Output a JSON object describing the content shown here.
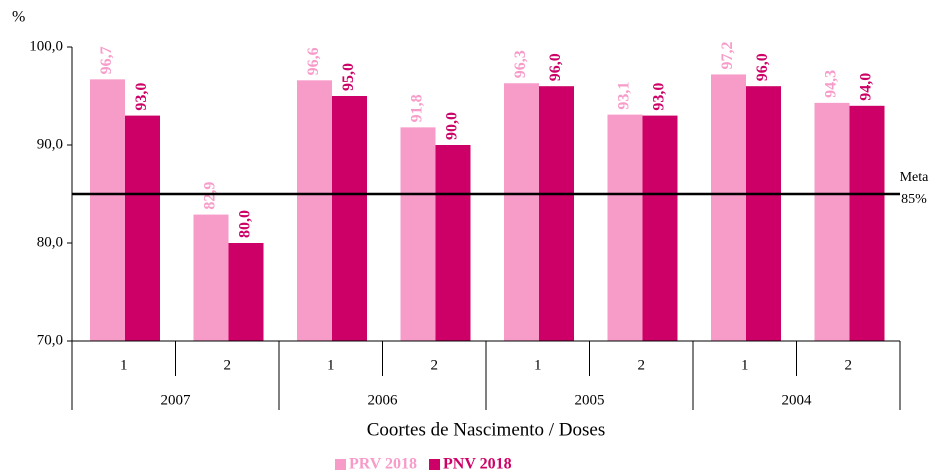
{
  "chart_data": {
    "type": "bar",
    "y_axis_label": "%",
    "x_axis_label": "Coortes de Nascimento / Doses",
    "categories": [
      "1",
      "2",
      "1",
      "2",
      "1",
      "2",
      "1",
      "2"
    ],
    "category_groups": [
      "2007",
      "2006",
      "2005",
      "2004"
    ],
    "series": [
      {
        "name": "PRV 2018",
        "color": "#f79bc9",
        "values": [
          96.7,
          82.9,
          96.6,
          91.8,
          96.3,
          93.1,
          97.2,
          94.3
        ],
        "value_labels": [
          "96,7",
          "82,9",
          "96,6",
          "91,8",
          "96,3",
          "93,1",
          "97,2",
          "94,3"
        ]
      },
      {
        "name": "PNV 2018",
        "color": "#cc0066",
        "values": [
          93,
          80,
          95,
          90,
          96,
          93,
          96,
          94
        ],
        "value_labels": [
          "93,0",
          "80,0",
          "95,0",
          "90,0",
          "96,0",
          "93,0",
          "96,0",
          "94,0"
        ]
      }
    ],
    "ylim": [
      70,
      100
    ],
    "yticks": [
      {
        "value": 70,
        "label": "70,0"
      },
      {
        "value": 80,
        "label": "80,0"
      },
      {
        "value": 90,
        "label": "90,0"
      },
      {
        "value": 100,
        "label": "100,0"
      }
    ],
    "reference_line": {
      "value": 85,
      "label": "Meta",
      "value_label": "85%",
      "color": "#000000"
    },
    "legend": "bottom"
  }
}
